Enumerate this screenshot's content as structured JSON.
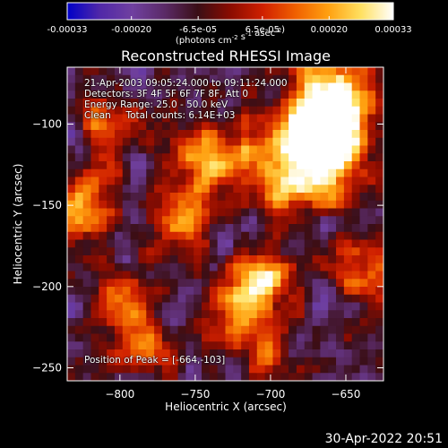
{
  "chart_data": {
    "type": "heatmap",
    "title": "Reconstructed RHESSI Image",
    "xlabel": "Heliocentric X (arcsec)",
    "ylabel": "Heliocentric Y (arcsec)",
    "xlim": [
      -835,
      -625
    ],
    "ylim": [
      -258,
      -65
    ],
    "xticks": [
      -800,
      -750,
      -700,
      -650
    ],
    "yticks": [
      -250,
      -200,
      -150,
      -100
    ],
    "colorbar": {
      "unit": "(photons cm^-2 s^-1 asec^-2)",
      "range": [
        -0.00033,
        0.00033
      ],
      "tick_labels": [
        "-0.00033",
        "-0.00020",
        "-6.5e-05",
        "6.5e-05",
        "0.00020",
        "0.00033"
      ],
      "tick_values": [
        -0.00033,
        -0.0002,
        -6.5e-05,
        6.5e-05,
        0.0002,
        0.00033
      ]
    },
    "peak": [
      -664,
      -103
    ],
    "annotations": [
      "21-Apr-2003 09:05:24.000 to 09:11:24.000",
      "Detectors: 3F 4F 5F 6F 7F 8F, Att 0",
      "Energy Range: 25.0 - 50.0 keV",
      "Clean     Total counts: 6.14E+03",
      "Position of Peak = [-664,-103]"
    ]
  },
  "timestamp": "30-Apr-2022 20:51",
  "colors": {
    "cmap": [
      "#0000c8",
      "#5028a8",
      "#7040a0",
      "#5a2a66",
      "#3a0e16",
      "#8a0c00",
      "#d02000",
      "#f06000",
      "#ffa010",
      "#ffe060",
      "#ffffff"
    ],
    "background": "#000000",
    "foreground": "#ffffff"
  }
}
